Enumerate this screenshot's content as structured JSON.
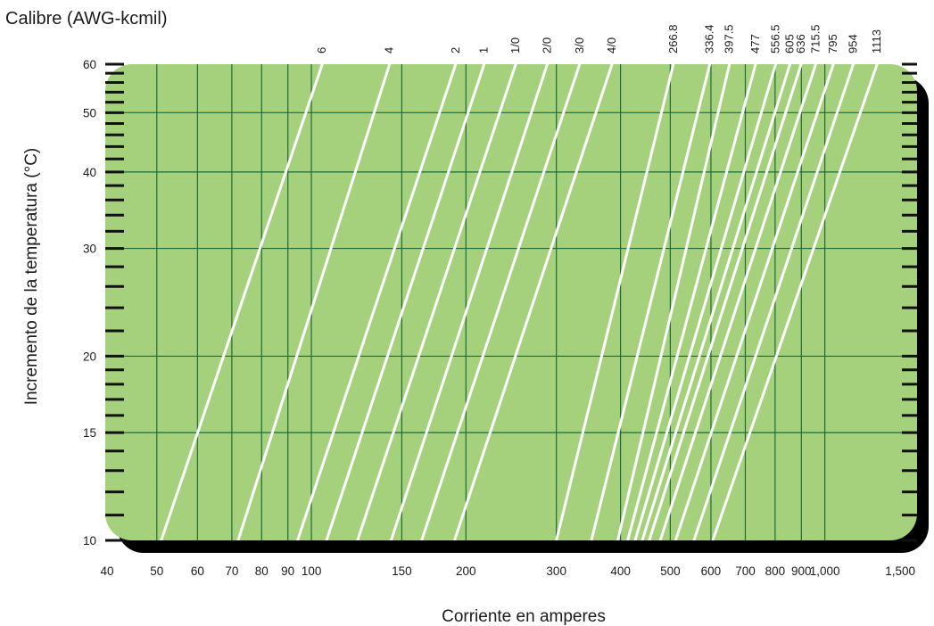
{
  "chart_data": {
    "type": "line",
    "title": "Calibre (AWG-kcmil)",
    "xlabel": "Corriente en amperes",
    "ylabel": "Incremento de la temperatura (°C)",
    "x_scale": "log",
    "y_scale": "log",
    "xlim": [
      40,
      1500
    ],
    "ylim": [
      10,
      60
    ],
    "grid": true,
    "x_ticks": [
      {
        "value": 40,
        "label": "40"
      },
      {
        "value": 50,
        "label": "50"
      },
      {
        "value": 60,
        "label": "60"
      },
      {
        "value": 70,
        "label": "70"
      },
      {
        "value": 80,
        "label": "80"
      },
      {
        "value": 90,
        "label": "90"
      },
      {
        "value": 100,
        "label": "100"
      },
      {
        "value": 150,
        "label": "150"
      },
      {
        "value": 200,
        "label": "200"
      },
      {
        "value": 300,
        "label": "300"
      },
      {
        "value": 400,
        "label": "400"
      },
      {
        "value": 500,
        "label": "500"
      },
      {
        "value": 600,
        "label": "600"
      },
      {
        "value": 700,
        "label": "700"
      },
      {
        "value": 800,
        "label": "800"
      },
      {
        "value": 900,
        "label": "900"
      },
      {
        "value": 1000,
        "label": "1,000"
      },
      {
        "value": 1500,
        "label": "1,500"
      }
    ],
    "y_ticks": [
      {
        "value": 10,
        "label": "10"
      },
      {
        "value": 15,
        "label": "15"
      },
      {
        "value": 20,
        "label": "20"
      },
      {
        "value": 30,
        "label": "30"
      },
      {
        "value": 40,
        "label": "40"
      },
      {
        "value": 50,
        "label": "50"
      },
      {
        "value": 60,
        "label": "60"
      }
    ],
    "series": [
      {
        "name": "6",
        "points": [
          [
            51,
            10
          ],
          [
            105,
            60
          ]
        ]
      },
      {
        "name": "4",
        "points": [
          [
            72,
            10
          ],
          [
            142,
            60
          ]
        ]
      },
      {
        "name": "2",
        "points": [
          [
            94,
            10
          ],
          [
            191,
            60
          ]
        ]
      },
      {
        "name": "1",
        "points": [
          [
            107,
            10
          ],
          [
            217,
            60
          ]
        ]
      },
      {
        "name": "1/0",
        "points": [
          [
            123,
            10
          ],
          [
            250,
            60
          ]
        ]
      },
      {
        "name": "2/0",
        "points": [
          [
            143,
            10
          ],
          [
            288,
            60
          ]
        ]
      },
      {
        "name": "3/0",
        "points": [
          [
            164,
            10
          ],
          [
            333,
            60
          ]
        ]
      },
      {
        "name": "4/0",
        "points": [
          [
            190,
            10
          ],
          [
            385,
            60
          ]
        ]
      },
      {
        "name": "266.8",
        "points": [
          [
            300,
            10
          ],
          [
            507,
            60
          ]
        ]
      },
      {
        "name": "336.4",
        "points": [
          [
            351,
            10
          ],
          [
            597,
            60
          ]
        ]
      },
      {
        "name": "397.5",
        "points": [
          [
            395,
            10
          ],
          [
            652,
            60
          ]
        ]
      },
      {
        "name": "477",
        "points": [
          [
            413,
            10
          ],
          [
            733,
            60
          ]
        ]
      },
      {
        "name": "556.5",
        "points": [
          [
            427,
            10
          ],
          [
            802,
            60
          ]
        ]
      },
      {
        "name": "605",
        "points": [
          [
            441,
            10
          ],
          [
            855,
            60
          ]
        ]
      },
      {
        "name": "636",
        "points": [
          [
            455,
            10
          ],
          [
            899,
            60
          ]
        ]
      },
      {
        "name": "715.5",
        "points": [
          [
            478,
            10
          ],
          [
            960,
            60
          ]
        ]
      },
      {
        "name": "795",
        "points": [
          [
            512,
            10
          ],
          [
            1039,
            60
          ]
        ]
      },
      {
        "name": "954",
        "points": [
          [
            556,
            10
          ],
          [
            1136,
            60
          ]
        ]
      },
      {
        "name": "1113",
        "points": [
          [
            605,
            10
          ],
          [
            1264,
            60
          ]
        ]
      }
    ]
  },
  "colors": {
    "plot_fill": "#a5d17c",
    "grid": "#1d6b35",
    "curve": "#ffffff",
    "shadow": "#000000"
  }
}
